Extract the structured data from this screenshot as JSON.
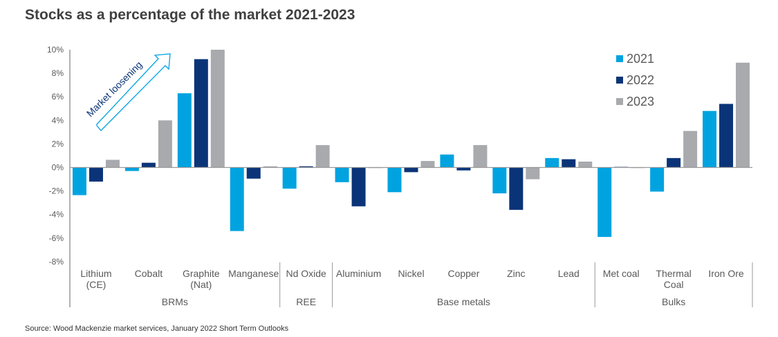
{
  "chart_data": {
    "type": "bar",
    "title": "Stocks as a percentage of the market 2021-2023",
    "categories": [
      "Lithium\n(CE)",
      "Cobalt",
      "Graphite\n(Nat)",
      "Manganese",
      "Nd Oxide",
      "Aluminium",
      "Nickel",
      "Copper",
      "Zinc",
      "Lead",
      "Met coal",
      "Thermal\nCoal",
      "Iron Ore"
    ],
    "groups": [
      {
        "label": "BRMs",
        "count": 4
      },
      {
        "label": "REE",
        "count": 1
      },
      {
        "label": "Base metals",
        "count": 5
      },
      {
        "label": "Bulks",
        "count": 3
      }
    ],
    "series": [
      {
        "name": "2021",
        "color": "#00A3E0",
        "values": [
          -2.35,
          -0.3,
          6.3,
          -5.4,
          -1.8,
          -1.25,
          -2.1,
          1.1,
          -2.2,
          0.8,
          -5.9,
          -2.05,
          4.8
        ]
      },
      {
        "name": "2022",
        "color": "#0B3478",
        "values": [
          -1.2,
          0.4,
          9.2,
          -0.95,
          0.1,
          -3.3,
          -0.4,
          -0.25,
          -3.6,
          0.7,
          0.05,
          0.8,
          5.4
        ]
      },
      {
        "name": "2023",
        "color": "#A9AAAD",
        "values": [
          0.65,
          4.0,
          10.0,
          0.1,
          1.9,
          -0.05,
          0.55,
          1.9,
          -1.0,
          0.5,
          0,
          3.1,
          8.9
        ]
      }
    ],
    "yticks": [
      "10%",
      "8%",
      "6%",
      "4%",
      "2%",
      "0%",
      "-2%",
      "-4%",
      "-6%",
      "-8%"
    ],
    "ylim": [
      -8,
      10
    ],
    "legend_position": "top-right",
    "annotation": "Market loosening",
    "annotation_color": "#00A3E0"
  },
  "source": "Source: Wood Mackenzie market services, January 2022 Short Term Outlooks"
}
